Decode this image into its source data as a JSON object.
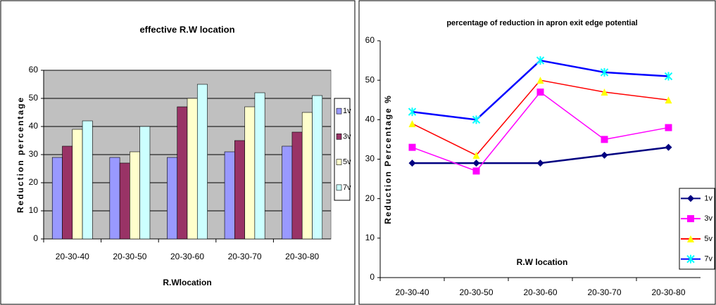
{
  "chart_data": [
    {
      "type": "bar",
      "title": "effective R.W location",
      "y_label": "Reduction percentage",
      "x_label": "R.Wlocation",
      "categories": [
        "20-30-40",
        "20-30-50",
        "20-30-60",
        "20-30-70",
        "20-30-80"
      ],
      "series": [
        {
          "name": "1v",
          "color": "#9999ff",
          "values": [
            29,
            29,
            29,
            31,
            33
          ]
        },
        {
          "name": "3v",
          "color": "#993366",
          "values": [
            33,
            27,
            47,
            35,
            38
          ]
        },
        {
          "name": "5v",
          "color": "#ffffcc",
          "values": [
            39,
            31,
            50,
            47,
            45
          ]
        },
        {
          "name": "7v",
          "color": "#ccffff",
          "values": [
            42,
            40,
            55,
            52,
            51
          ]
        }
      ],
      "ylim": [
        0,
        60
      ],
      "yticks": [
        0,
        10,
        20,
        30,
        40,
        50,
        60
      ],
      "grid": true,
      "plot_background": "#c0c0c0",
      "legend": "right"
    },
    {
      "type": "line",
      "title": "percentage of reduction in apron exit edge potential",
      "y_label": "Reduction Percentage %",
      "x_label": "R.W location",
      "categories": [
        "20-30-40",
        "20-30-50",
        "20-30-60",
        "20-30-70",
        "20-30-80"
      ],
      "series": [
        {
          "name": "1v",
          "color": "#000080",
          "marker": "diamond",
          "marker_color": "#000080",
          "values": [
            29,
            29,
            29,
            31,
            33
          ]
        },
        {
          "name": "3v",
          "color": "#ff00ff",
          "marker": "square",
          "marker_color": "#ff00ff",
          "values": [
            33,
            27,
            47,
            35,
            38
          ]
        },
        {
          "name": "5v",
          "color": "#ff0000",
          "marker": "triangle",
          "marker_color": "#ffff00",
          "values": [
            39,
            31,
            50,
            47,
            45
          ]
        },
        {
          "name": "7v",
          "color": "#0000ff",
          "marker": "star",
          "marker_color": "#00ffff",
          "values": [
            42,
            40,
            55,
            52,
            51
          ]
        }
      ],
      "ylim": [
        0,
        60
      ],
      "yticks": [
        0,
        10,
        20,
        30,
        40,
        50,
        60
      ],
      "grid": false,
      "plot_background": "#ffffff",
      "legend": "lower right"
    }
  ]
}
